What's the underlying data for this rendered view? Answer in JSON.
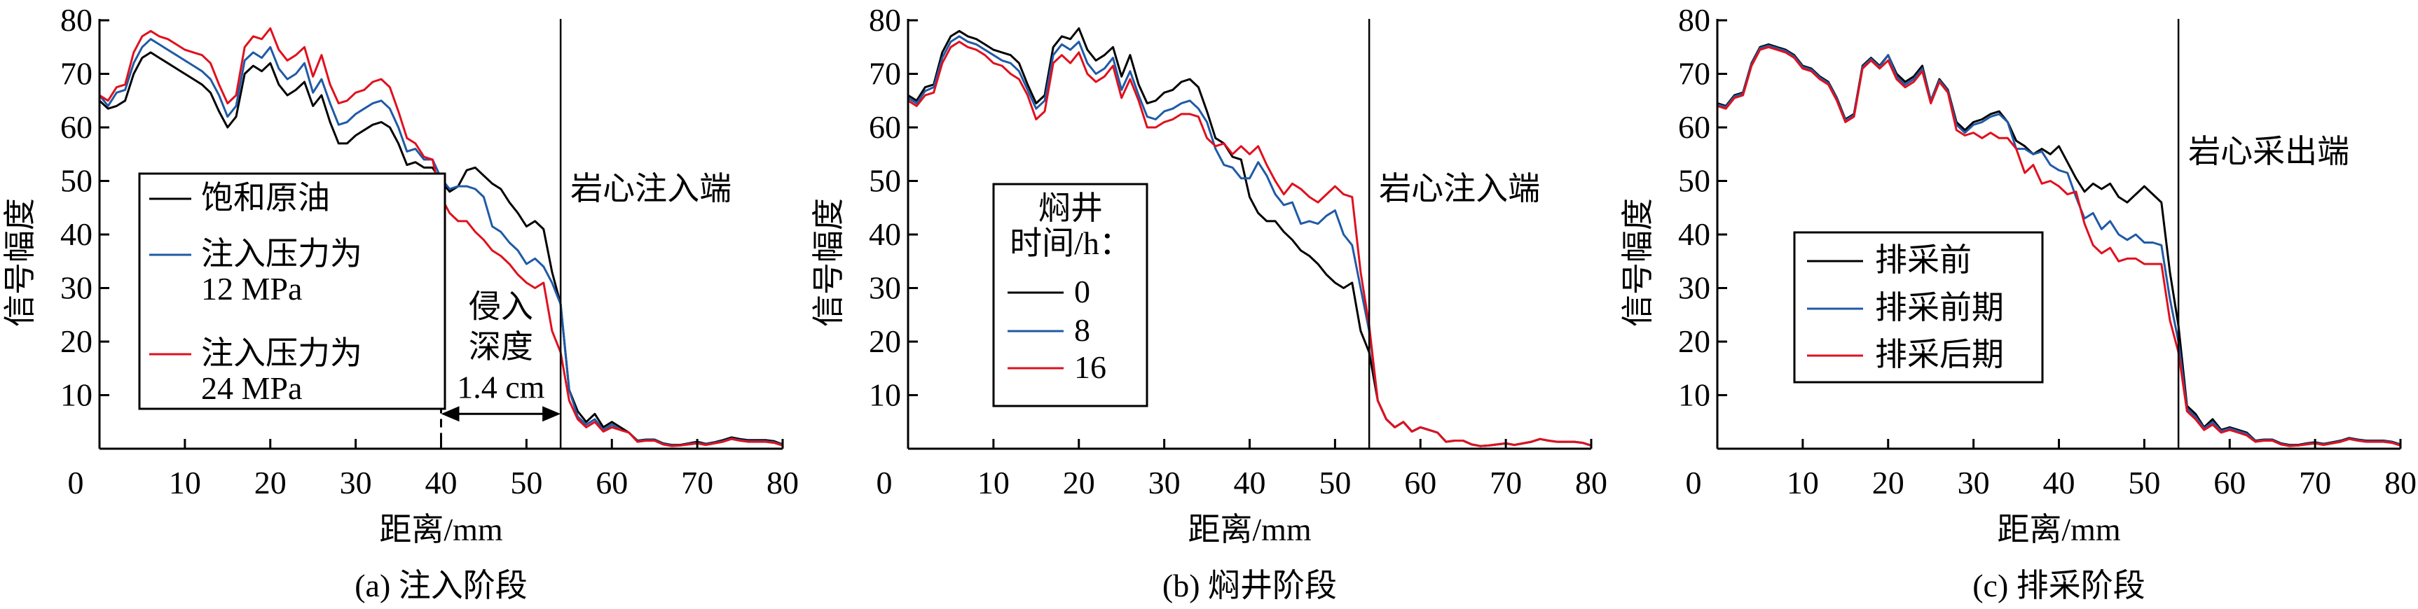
{
  "chart_data": [
    {
      "type": "line",
      "title": "(a) 注入阶段",
      "xlabel": "距离/mm",
      "ylabel": "信号幅度",
      "xlim": [
        0,
        80
      ],
      "ylim": [
        0,
        80
      ],
      "xticks": [
        "0",
        "10",
        "20",
        "30",
        "40",
        "50",
        "60",
        "70",
        "80"
      ],
      "yticks": [
        "10",
        "20",
        "30",
        "40",
        "50",
        "60",
        "70",
        "80"
      ],
      "x_step": 1,
      "grid": false,
      "marker_line_x": 54,
      "marker_label": "岩心注入端",
      "legend": {
        "placement": "center-left",
        "title": []
      },
      "annotation": {
        "lines": [
          "侵入",
          "深度",
          "1.4 cm"
        ],
        "from_x": 40,
        "to_x": 54,
        "dashed_x": 40
      },
      "series": [
        {
          "name": "饱和原油",
          "color": "#000000",
          "values": [
            65,
            63.5,
            64,
            65,
            70,
            73,
            74,
            73,
            72,
            71,
            70,
            69,
            68,
            66.5,
            63,
            60,
            62,
            70,
            71.5,
            70.5,
            72,
            68,
            66,
            67,
            68.5,
            64,
            66,
            61,
            57,
            57,
            58.5,
            59.5,
            60.5,
            61,
            60,
            57,
            53,
            53.5,
            52.5,
            52.5,
            50,
            48,
            49,
            52,
            52.5,
            51,
            49.5,
            48.5,
            46,
            44,
            41.5,
            42.5,
            41,
            33,
            27,
            11,
            7,
            5,
            6.5,
            4,
            5,
            4,
            3,
            1.5,
            1.7,
            1.7,
            1,
            0.7,
            0.7,
            1,
            1.3,
            0.9,
            1.2,
            1.6,
            2.1,
            1.8,
            1.6,
            1.6,
            1.6,
            1.4,
            0.8
          ]
        },
        {
          "name": "注入压力为 12 MPa",
          "color": "#1f5aa6",
          "values": [
            66,
            64,
            66.5,
            67,
            72,
            75,
            76.5,
            75.5,
            74.5,
            73.5,
            72.5,
            71.5,
            70.5,
            69,
            66,
            62,
            64,
            72.5,
            74,
            73,
            75,
            71,
            69,
            70,
            72,
            66.5,
            69,
            64.5,
            60.5,
            61,
            62.5,
            63.5,
            64.5,
            65,
            63.5,
            60,
            55.5,
            56,
            54,
            54,
            50.5,
            48.5,
            49,
            49,
            48.5,
            47,
            41.5,
            40.5,
            38.5,
            37,
            34.5,
            35.5,
            34,
            31,
            27,
            11,
            6,
            4.5,
            5.5,
            3.5,
            4.5,
            3.5,
            3,
            1.4,
            1.6,
            1.6,
            0.9,
            0.6,
            0.6,
            0.9,
            1.1,
            0.8,
            1.1,
            1.4,
            1.9,
            1.6,
            1.4,
            1.4,
            1.4,
            1.2,
            0.7
          ]
        },
        {
          "name": "注入压力为 24 MPa",
          "color": "#e0101e",
          "values": [
            66,
            65,
            67.5,
            68,
            74,
            77,
            78,
            77,
            76.5,
            75.5,
            74.5,
            74,
            73.5,
            72,
            68,
            64.5,
            66,
            75,
            77,
            76.5,
            78.5,
            74.5,
            72.5,
            73.5,
            75,
            69.5,
            73.5,
            68,
            64.5,
            65,
            66.5,
            67,
            68.5,
            69,
            67.5,
            63,
            58,
            57,
            54.5,
            54,
            47,
            44,
            42.5,
            42.5,
            40.5,
            39,
            37,
            36,
            34.5,
            32.5,
            31,
            30,
            31,
            22,
            18,
            9,
            5.5,
            4,
            5,
            3.2,
            4,
            3.5,
            3,
            1.3,
            1.5,
            1.5,
            0.8,
            0.5,
            0.6,
            0.8,
            1,
            0.7,
            1,
            1.3,
            1.8,
            1.5,
            1.3,
            1.3,
            1.3,
            1.1,
            0.6
          ]
        }
      ]
    },
    {
      "type": "line",
      "title": "(b) 焖井阶段",
      "xlabel": "距离/mm",
      "ylabel": "信号幅度",
      "xlim": [
        0,
        80
      ],
      "ylim": [
        0,
        80
      ],
      "xticks": [
        "0",
        "10",
        "20",
        "30",
        "40",
        "50",
        "60",
        "70",
        "80"
      ],
      "yticks": [
        "10",
        "20",
        "30",
        "40",
        "50",
        "60",
        "70",
        "80"
      ],
      "x_step": 1,
      "grid": false,
      "marker_line_x": 54,
      "marker_label": "岩心注入端",
      "legend": {
        "placement": "center-left",
        "title": [
          "焖井",
          "时间/h："
        ]
      },
      "series": [
        {
          "name": "0",
          "color": "#000000",
          "values": [
            66,
            65,
            67.5,
            68,
            74,
            77,
            78,
            77,
            76.5,
            75.5,
            74.5,
            74,
            73.5,
            72,
            68,
            64.5,
            66,
            75,
            77,
            76.5,
            78.5,
            74.5,
            72.5,
            73.5,
            75,
            69.5,
            73.5,
            68,
            64.5,
            65,
            66.5,
            67,
            68.5,
            69,
            67.5,
            63,
            58,
            57,
            54.5,
            54,
            47,
            44,
            42.5,
            42.5,
            40.5,
            39,
            37,
            36,
            34.5,
            32.5,
            31,
            30,
            31,
            22,
            18,
            9,
            5.5,
            4,
            5,
            3.2,
            4,
            3.5,
            3,
            1.3,
            1.5,
            1.5,
            0.8,
            0.5,
            0.6,
            0.8,
            1,
            0.7,
            1,
            1.3,
            1.8,
            1.5,
            1.3,
            1.3,
            1.3,
            1.1,
            0.6
          ]
        },
        {
          "name": "8",
          "color": "#1f5aa6",
          "values": [
            65.5,
            64.5,
            66.8,
            67.5,
            73,
            76,
            77,
            76,
            75.5,
            74.5,
            73.5,
            72.5,
            72,
            70.5,
            67,
            63.5,
            65,
            73.5,
            75.5,
            74.5,
            76,
            72,
            70,
            71,
            73,
            67,
            70.5,
            66,
            62,
            61.5,
            63,
            63.5,
            64.5,
            65,
            63.5,
            61,
            56,
            53,
            52.5,
            50.5,
            50.5,
            53.5,
            51,
            47.5,
            45.5,
            46,
            42,
            42.5,
            42,
            43.5,
            44.5,
            40,
            38,
            30,
            22,
            9,
            5.5,
            4,
            5,
            3.2,
            4,
            3.5,
            3,
            1.3,
            1.5,
            1.5,
            0.8,
            0.5,
            0.6,
            0.8,
            1,
            0.7,
            1,
            1.3,
            1.8,
            1.5,
            1.3,
            1.3,
            1.3,
            1.1,
            0.6
          ]
        },
        {
          "name": "16",
          "color": "#e0101e",
          "values": [
            65,
            64,
            66,
            66.5,
            72,
            75,
            76,
            75,
            74.5,
            73.5,
            72,
            71.5,
            70,
            69,
            66,
            61.5,
            63,
            72,
            73.5,
            72,
            74,
            70,
            68.5,
            69.5,
            71.5,
            65.5,
            69,
            65,
            60,
            60,
            61,
            61.5,
            62.5,
            62.5,
            62,
            58,
            56.5,
            57,
            55,
            56.5,
            55,
            56.5,
            53,
            50,
            47.5,
            49.5,
            48.5,
            47,
            46,
            47.5,
            49,
            47.5,
            47,
            33,
            23,
            9,
            5.5,
            4,
            5,
            3.2,
            4,
            3.5,
            3,
            1.3,
            1.5,
            1.5,
            0.8,
            0.5,
            0.6,
            0.8,
            1,
            0.7,
            1,
            1.3,
            1.8,
            1.5,
            1.3,
            1.3,
            1.3,
            1.1,
            0.6
          ]
        }
      ]
    },
    {
      "type": "line",
      "title": "(c) 排采阶段",
      "xlabel": "距离/mm",
      "ylabel": "信号幅度",
      "xlim": [
        0,
        80
      ],
      "ylim": [
        0,
        80
      ],
      "xticks": [
        "0",
        "10",
        "20",
        "30",
        "40",
        "50",
        "60",
        "70",
        "80"
      ],
      "yticks": [
        "10",
        "20",
        "30",
        "40",
        "50",
        "60",
        "70",
        "80"
      ],
      "x_step": 1,
      "grid": false,
      "marker_line_x": 54,
      "marker_label": "岩心采出端",
      "legend": {
        "placement": "center-left",
        "title": []
      },
      "series": [
        {
          "name": "排采前",
          "color": "#000000",
          "values": [
            64.5,
            64,
            66,
            66.5,
            72,
            75,
            75.5,
            75,
            74.5,
            73.5,
            71.5,
            71,
            69.5,
            68.5,
            65.5,
            61.5,
            62.5,
            71.5,
            73,
            71.5,
            73.5,
            70,
            68.5,
            69.5,
            71.5,
            65,
            69,
            67,
            61,
            59.5,
            61,
            61.5,
            62.5,
            63,
            61,
            57.5,
            56.5,
            55,
            56,
            55,
            56.5,
            53.5,
            50.5,
            48,
            49.5,
            48.5,
            49.5,
            47,
            46,
            47.5,
            49,
            47.5,
            46,
            33,
            23,
            8,
            6.5,
            4,
            5.5,
            3.5,
            4,
            3.5,
            3,
            1.5,
            1.7,
            1.7,
            1,
            0.7,
            0.7,
            1,
            1.2,
            0.9,
            1.2,
            1.5,
            2,
            1.7,
            1.5,
            1.5,
            1.5,
            1.3,
            0.8
          ]
        },
        {
          "name": "排采前期",
          "color": "#1f5aa6",
          "values": [
            64.3,
            63.8,
            65.8,
            66.3,
            71.8,
            74.8,
            75.3,
            74.8,
            74.3,
            73.3,
            71.3,
            70.8,
            69.3,
            68.3,
            65.3,
            61.3,
            62.3,
            71.3,
            72.8,
            71.3,
            73.5,
            69.5,
            68,
            69,
            71,
            65,
            68.8,
            66.8,
            60.5,
            59,
            60.5,
            61,
            62,
            62.5,
            61,
            56,
            56,
            55,
            55.5,
            53,
            52,
            51.5,
            47,
            43,
            44,
            41,
            42.5,
            40,
            39,
            40,
            38.5,
            38.5,
            38,
            28,
            20,
            7.5,
            6,
            3.8,
            5,
            3.3,
            3.8,
            3.3,
            2.8,
            1.4,
            1.6,
            1.6,
            0.9,
            0.6,
            0.6,
            0.9,
            1.1,
            0.8,
            1.1,
            1.4,
            1.9,
            1.6,
            1.4,
            1.4,
            1.4,
            1.2,
            0.7
          ]
        },
        {
          "name": "排采后期",
          "color": "#e0101e",
          "values": [
            64,
            63.5,
            65.5,
            66,
            71.5,
            74.5,
            75,
            74.5,
            74,
            73,
            71,
            70.5,
            69,
            68,
            65,
            61,
            62,
            71,
            72.5,
            71,
            72.5,
            69,
            67.5,
            68.5,
            70.5,
            64.5,
            68.5,
            66.5,
            59.5,
            58.5,
            59,
            58,
            59,
            58,
            58,
            56,
            51.5,
            53,
            49.5,
            50,
            49,
            47.5,
            48,
            42,
            38,
            36.5,
            37.5,
            35,
            35.5,
            35.5,
            34.5,
            34.5,
            34.5,
            24,
            18,
            7,
            5.5,
            3.5,
            4.5,
            3,
            3.5,
            3,
            2.5,
            1.3,
            1.5,
            1.5,
            0.8,
            0.5,
            0.6,
            0.8,
            1,
            0.7,
            1,
            1.3,
            1.8,
            1.5,
            1.3,
            1.3,
            1.3,
            1.1,
            0.6
          ]
        }
      ]
    }
  ]
}
